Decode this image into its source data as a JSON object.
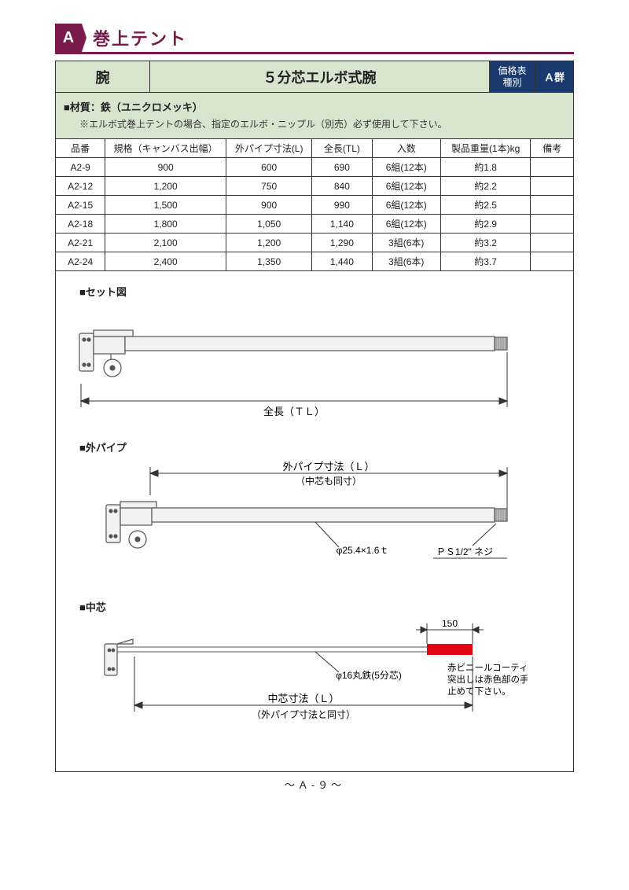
{
  "header": {
    "letter": "A",
    "category": "巻上テント"
  },
  "subheader": {
    "arm": "腕",
    "product": "５分芯エルボ式腕",
    "price_label": "価格表\n種別",
    "group": "Ａ群"
  },
  "material": {
    "line1": "■材質：鉄（ユニクロメッキ）",
    "line2": "※エルボ式巻上テントの場合、指定のエルボ・ニップル（別売）必ず使用して下さい。"
  },
  "table": {
    "columns": [
      "品番",
      "規格（キャンバス出幅）",
      "外パイプ寸法(L)",
      "全長(TL)",
      "入数",
      "製品重量(1本)kg",
      "備考"
    ],
    "rows": [
      [
        "A2-9",
        "900",
        "600",
        "690",
        "6組(12本)",
        "約1.8",
        ""
      ],
      [
        "A2-12",
        "1,200",
        "750",
        "840",
        "6組(12本)",
        "約2.2",
        ""
      ],
      [
        "A2-15",
        "1,500",
        "900",
        "990",
        "6組(12本)",
        "約2.5",
        ""
      ],
      [
        "A2-18",
        "1,800",
        "1,050",
        "1,140",
        "6組(12本)",
        "約2.9",
        ""
      ],
      [
        "A2-21",
        "2,100",
        "1,200",
        "1,290",
        "3組(6本)",
        "約3.2",
        ""
      ],
      [
        "A2-24",
        "2,400",
        "1,350",
        "1,440",
        "3組(6本)",
        "約3.7",
        ""
      ]
    ]
  },
  "diagrams": {
    "set": {
      "title": "■セット図",
      "total_label": "全長（ＴＬ）",
      "stroke": "#555555",
      "fill": "#f2f2f2"
    },
    "outer": {
      "title": "■外パイプ",
      "dim_upper": "外パイプ寸法（Ｌ）",
      "dim_sub": "（中芯も同寸）",
      "callout1": "φ25.4×1.6ｔ",
      "callout2": "ＰＳ1/2\" ネジ",
      "stroke": "#555555",
      "fill": "#f2f2f2"
    },
    "core": {
      "title": "■中芯",
      "dim150": "150",
      "callout1": "φ16丸鉄(5分芯)",
      "dim_lower": "中芯寸法（Ｌ）",
      "dim_sub": "（外パイプ寸法と同寸）",
      "red_note1": "赤ビニールコーティング",
      "red_note2": "突出しは赤色部の手前で",
      "red_note3": "止めて下さい。",
      "stroke": "#555555",
      "red": "#e30613"
    }
  },
  "footer": "～Ａ-９～",
  "colors": {
    "maroon": "#7a1a4a",
    "navy": "#1a3a6e",
    "pale_green": "#d7e5cf"
  }
}
